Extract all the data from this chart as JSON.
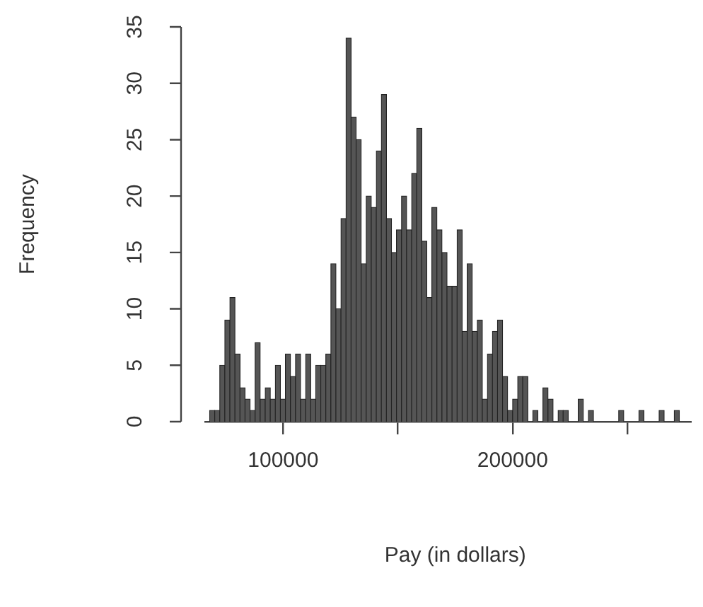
{
  "chart_data": {
    "type": "histogram",
    "xlabel": "Pay (in dollars)",
    "ylabel": "Frequency",
    "bins": [
      68000,
      70200,
      72400,
      74600,
      76800,
      79000,
      81200,
      83400,
      85600,
      87800,
      90000,
      92200,
      94400,
      96600,
      98800,
      101000,
      103200,
      105400,
      107600,
      109800,
      112000,
      114200,
      116400,
      118600,
      120800,
      123000,
      125200,
      127400,
      129600,
      131800,
      134000,
      136200,
      138400,
      140600,
      142800,
      145000,
      147200,
      149400,
      151600,
      153800,
      156000,
      158200,
      160400,
      162600,
      164800,
      167000,
      169200,
      171400,
      173600,
      175800,
      178000,
      180200,
      182400,
      184600,
      186800,
      189000,
      191200,
      193400,
      195600,
      197800,
      200000,
      202200,
      204400,
      206600,
      208800,
      211000,
      213200,
      215400,
      217600,
      219800,
      222000,
      224200,
      226400,
      228600,
      230800,
      233000,
      235200,
      237400,
      239600,
      241800,
      244000,
      246200,
      248400,
      250600,
      252800,
      255000,
      257200,
      259400,
      261600,
      263800,
      266000,
      268200,
      270400,
      272600
    ],
    "values": [
      1,
      1,
      5,
      9,
      11,
      6,
      3,
      2,
      1,
      7,
      2,
      3,
      2,
      5,
      2,
      6,
      4,
      6,
      2,
      6,
      2,
      5,
      5,
      6,
      14,
      10,
      18,
      34,
      27,
      25,
      14,
      20,
      19,
      24,
      29,
      18,
      15,
      17,
      20,
      17,
      22,
      26,
      16,
      11,
      19,
      17,
      15,
      12,
      12,
      17,
      8,
      14,
      8,
      9,
      2,
      6,
      8,
      9,
      4,
      1,
      2,
      4,
      4,
      0,
      1,
      0,
      3,
      2,
      0,
      1,
      1,
      0,
      0,
      2,
      0,
      1,
      0,
      0,
      0,
      0,
      0,
      1,
      0,
      0,
      0,
      1,
      0,
      0,
      0,
      1,
      0,
      0,
      1
    ],
    "color": "#555555",
    "xlim": [
      66000,
      278000
    ],
    "xticks": [
      100000,
      {
        "value": 150000,
        "label": null
      },
      200000,
      {
        "value": 250000,
        "label": null
      }
    ],
    "ylim": [
      0,
      35
    ],
    "yticks": [
      0,
      5,
      10,
      15,
      20,
      25,
      30,
      35
    ]
  }
}
